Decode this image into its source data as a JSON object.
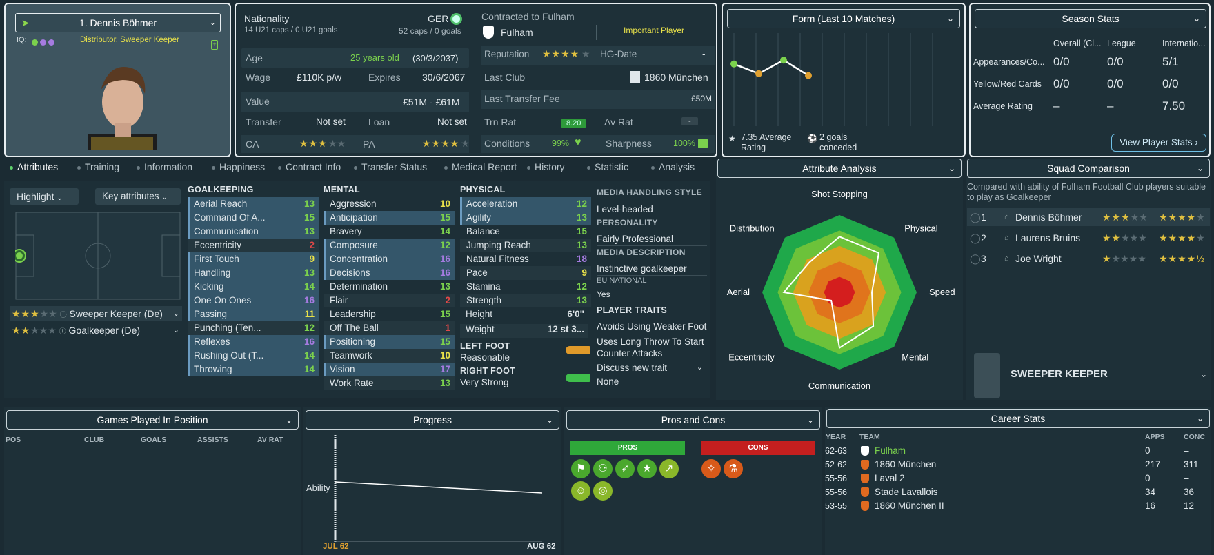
{
  "player": {
    "name": "1. Dennis Böhmer",
    "iq_label": "IQ:",
    "roles": "Distributor, Sweeper Keeper"
  },
  "bio": {
    "nationality_label": "Nationality",
    "u21": "14 U21 caps / 0 U21 goals",
    "nat_code": "GER",
    "caps": "52 caps / 0 goals",
    "age_label": "Age",
    "age": "25 years old",
    "dob": "(30/3/2037)",
    "wage_label": "Wage",
    "wage": "£110K p/w",
    "expires_label": "Expires",
    "expires": "30/6/2067",
    "value_label": "Value",
    "value": "£51M - £61M",
    "transfer_label": "Transfer",
    "transfer": "Not set",
    "loan_label": "Loan",
    "loan": "Not set",
    "ca_label": "CA",
    "pa_label": "PA",
    "ca_stars": "★★★",
    "ca_empty": "★★",
    "pa_stars": "★★★★",
    "pa_empty": "★"
  },
  "contract": {
    "title": "Contracted to Fulham",
    "club": "Fulham",
    "status": "Important Player",
    "rep_label": "Reputation",
    "rep_stars": "★★★★",
    "rep_empty": "★",
    "hg_label": "HG-Date",
    "hg": "-",
    "lastclub_label": "Last Club",
    "lastclub": "1860 München",
    "fee_label": "Last Transfer Fee",
    "fee": "£50M",
    "trn_label": "Trn Rat",
    "trn": "8.20",
    "av_label": "Av Rat",
    "av": "-",
    "cond_label": "Conditions",
    "cond": "99%",
    "sharp_label": "Sharpness",
    "sharp": "100%"
  },
  "form": {
    "title": "Form (Last 10 Matches)",
    "avg": "7.35 Average Rating",
    "conceded": "2 goals conceded",
    "points": [
      0.32,
      0.42,
      0.28,
      0.44
    ],
    "colors": [
      "#7bd14d",
      "#e0a030",
      "#7bd14d",
      "#e0a030"
    ]
  },
  "season": {
    "title": "Season Stats",
    "cols": [
      "Overall (Cl...",
      "League",
      "Internatio..."
    ],
    "rows": [
      {
        "label": "Appearances/Co...",
        "vals": [
          "0/0",
          "0/0",
          "5/1"
        ]
      },
      {
        "label": "Yellow/Red Cards",
        "vals": [
          "0/0",
          "0/0",
          "0/0"
        ]
      },
      {
        "label": "Average Rating",
        "vals": [
          "–",
          "–",
          "7.50"
        ]
      }
    ],
    "button": "View Player Stats ›"
  },
  "tabs": [
    "Attributes",
    "Training",
    "Information",
    "Happiness",
    "Contract Info",
    "Transfer Status",
    "Medical Report",
    "History",
    "Statistic",
    "Analysis"
  ],
  "pitch": {
    "highlight": "Highlight",
    "keyattr": "Key attributes",
    "role1": "Sweeper Keeper (De)",
    "role2": "Goalkeeper (De)"
  },
  "gk": {
    "title": "GOALKEEPING",
    "items": [
      {
        "n": "Aerial Reach",
        "v": "13",
        "c": "#7bd14d",
        "h": true
      },
      {
        "n": "Command Of A...",
        "v": "15",
        "c": "#7bd14d",
        "h": true
      },
      {
        "n": "Communication",
        "v": "13",
        "c": "#7bd14d",
        "h": true
      },
      {
        "n": "Eccentricity",
        "v": "2",
        "c": "#e04848",
        "h": false
      },
      {
        "n": "First Touch",
        "v": "9",
        "c": "#e8e14a",
        "h": true
      },
      {
        "n": "Handling",
        "v": "13",
        "c": "#7bd14d",
        "h": true
      },
      {
        "n": "Kicking",
        "v": "14",
        "c": "#7bd14d",
        "h": true
      },
      {
        "n": "One On Ones",
        "v": "16",
        "c": "#a57be0",
        "h": true
      },
      {
        "n": "Passing",
        "v": "11",
        "c": "#e8e14a",
        "h": true
      },
      {
        "n": "Punching (Ten...",
        "v": "12",
        "c": "#7bd14d",
        "h": false
      },
      {
        "n": "Reflexes",
        "v": "16",
        "c": "#a57be0",
        "h": true
      },
      {
        "n": "Rushing Out (T...",
        "v": "14",
        "c": "#7bd14d",
        "h": true
      },
      {
        "n": "Throwing",
        "v": "14",
        "c": "#7bd14d",
        "h": true
      }
    ]
  },
  "mental": {
    "title": "MENTAL",
    "items": [
      {
        "n": "Aggression",
        "v": "10",
        "c": "#e8e14a",
        "h": false
      },
      {
        "n": "Anticipation",
        "v": "15",
        "c": "#7bd14d",
        "h": true
      },
      {
        "n": "Bravery",
        "v": "14",
        "c": "#7bd14d",
        "h": false
      },
      {
        "n": "Composure",
        "v": "12",
        "c": "#7bd14d",
        "h": true
      },
      {
        "n": "Concentration",
        "v": "16",
        "c": "#a57be0",
        "h": true
      },
      {
        "n": "Decisions",
        "v": "16",
        "c": "#a57be0",
        "h": true
      },
      {
        "n": "Determination",
        "v": "13",
        "c": "#7bd14d",
        "h": false
      },
      {
        "n": "Flair",
        "v": "2",
        "c": "#e04848",
        "h": false
      },
      {
        "n": "Leadership",
        "v": "15",
        "c": "#7bd14d",
        "h": false
      },
      {
        "n": "Off The Ball",
        "v": "1",
        "c": "#e04848",
        "h": false
      },
      {
        "n": "Positioning",
        "v": "15",
        "c": "#7bd14d",
        "h": true
      },
      {
        "n": "Teamwork",
        "v": "10",
        "c": "#e8e14a",
        "h": false
      },
      {
        "n": "Vision",
        "v": "17",
        "c": "#a57be0",
        "h": true
      },
      {
        "n": "Work Rate",
        "v": "13",
        "c": "#7bd14d",
        "h": false
      }
    ]
  },
  "physical": {
    "title": "PHYSICAL",
    "items": [
      {
        "n": "Acceleration",
        "v": "12",
        "c": "#7bd14d",
        "h": true
      },
      {
        "n": "Agility",
        "v": "13",
        "c": "#7bd14d",
        "h": true
      },
      {
        "n": "Balance",
        "v": "15",
        "c": "#7bd14d",
        "h": false
      },
      {
        "n": "Jumping Reach",
        "v": "13",
        "c": "#7bd14d",
        "h": false
      },
      {
        "n": "Natural Fitness",
        "v": "18",
        "c": "#a57be0",
        "h": false
      },
      {
        "n": "Pace",
        "v": "9",
        "c": "#e8e14a",
        "h": false
      },
      {
        "n": "Stamina",
        "v": "12",
        "c": "#7bd14d",
        "h": false
      },
      {
        "n": "Strength",
        "v": "13",
        "c": "#7bd14d",
        "h": false
      }
    ],
    "height_label": "Height",
    "height": "6'0\"",
    "weight_label": "Weight",
    "weight": "12 st 3...",
    "lf_label": "LEFT FOOT",
    "lf": "Reasonable",
    "rf_label": "RIGHT FOOT",
    "rf": "Very Strong"
  },
  "media": {
    "mh_title": "MEDIA HANDLING STYLE",
    "mh": "Level-headed",
    "pers_title": "PERSONALITY",
    "pers": "Fairly Professional",
    "md_title": "MEDIA DESCRIPTION",
    "md": "Instinctive goalkeeper",
    "eu_title": "EU NATIONAL",
    "eu": "Yes",
    "traits_title": "PLAYER TRAITS",
    "t1": "Avoids Using Weaker Foot",
    "t2": "Uses Long Throw To Start Counter Attacks",
    "discuss": "Discuss new trait",
    "none": "None"
  },
  "analysis": {
    "title": "Attribute Analysis",
    "labels": [
      "Shot Stopping",
      "Physical",
      "Speed",
      "Mental",
      "Communication",
      "Eccentricity",
      "Aerial",
      "Distribution"
    ],
    "values": [
      0.72,
      0.72,
      0.42,
      0.62,
      0.72,
      0.15,
      0.72,
      0.55
    ]
  },
  "squad": {
    "title": "Squad Comparison",
    "desc": "Compared with ability of Fulham Football Club players suitable to play as Goalkeeper",
    "rows": [
      {
        "rank": "1",
        "name": "Dennis Böhmer",
        "cur": "★★★",
        "curE": "★★",
        "pot": "★★★★",
        "potE": "★"
      },
      {
        "rank": "2",
        "name": "Laurens Bruins",
        "cur": "★★",
        "curE": "★★★",
        "pot": "★★★★",
        "potE": "★"
      },
      {
        "rank": "3",
        "name": "Joe Wright",
        "cur": "★",
        "curE": "★★★★",
        "pot": "★★★★½",
        "potE": ""
      }
    ],
    "role": "SWEEPER KEEPER"
  },
  "games": {
    "title": "Games Played In Position",
    "cols": [
      "POS",
      "CLUB",
      "GOALS",
      "ASSISTS",
      "AV RAT"
    ]
  },
  "progress": {
    "title": "Progress",
    "ylabel": "Ability",
    "x0": "JUL 62",
    "x1": "AUG 62"
  },
  "proscons": {
    "title": "Pros and Cons",
    "pros": "PROS",
    "cons": "CONS"
  },
  "career": {
    "title": "Career Stats",
    "cols": [
      "YEAR",
      "TEAM",
      "APPS",
      "CONC"
    ],
    "rows": [
      {
        "y": "62-63",
        "t": "Fulham",
        "a": "0",
        "c": "–",
        "cur": true
      },
      {
        "y": "52-62",
        "t": "1860 München",
        "a": "217",
        "c": "311",
        "cur": false
      },
      {
        "y": "55-56",
        "t": "Laval 2",
        "a": "0",
        "c": "–",
        "cur": false
      },
      {
        "y": "55-56",
        "t": "Stade Lavallois",
        "a": "34",
        "c": "36",
        "cur": false
      },
      {
        "y": "53-55",
        "t": "1860 München II",
        "a": "16",
        "c": "12",
        "cur": false
      }
    ]
  }
}
